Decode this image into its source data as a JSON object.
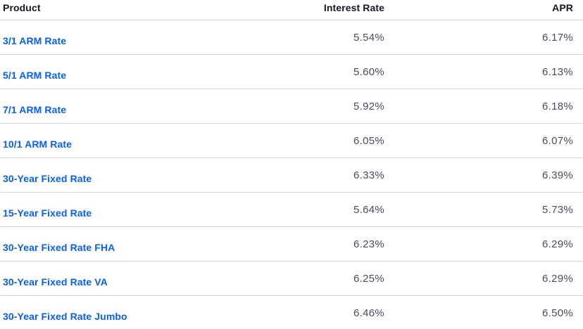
{
  "colors": {
    "link-blue": "#0860F0",
    "value-gray": "#4A4B5C",
    "header-dark": "#17171F",
    "divider": "#D6D6DA",
    "bg": "#FFFFFF"
  },
  "table": {
    "columns": [
      "Product",
      "Interest Rate",
      "APR"
    ],
    "rows": [
      {
        "product": "3/1 ARM Rate",
        "interest_rate": "5.54%",
        "apr": "6.17%"
      },
      {
        "product": "5/1 ARM Rate",
        "interest_rate": "5.60%",
        "apr": "6.13%"
      },
      {
        "product": "7/1 ARM Rate",
        "interest_rate": "5.92%",
        "apr": "6.18%"
      },
      {
        "product": "10/1 ARM Rate",
        "interest_rate": "6.05%",
        "apr": "6.07%"
      },
      {
        "product": "30-Year Fixed Rate",
        "interest_rate": "6.33%",
        "apr": "6.39%"
      },
      {
        "product": "15-Year Fixed Rate",
        "interest_rate": "5.64%",
        "apr": "5.73%"
      },
      {
        "product": "30-Year Fixed Rate FHA",
        "interest_rate": "6.23%",
        "apr": "6.29%"
      },
      {
        "product": "30-Year Fixed Rate VA",
        "interest_rate": "6.25%",
        "apr": "6.29%"
      },
      {
        "product": "30-Year Fixed Rate Jumbo",
        "interest_rate": "6.46%",
        "apr": "6.50%"
      }
    ]
  }
}
